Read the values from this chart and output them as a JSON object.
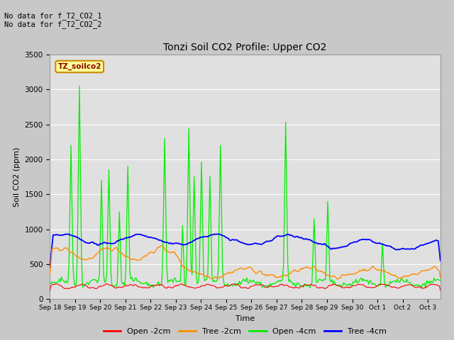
{
  "title": "Tonzi Soil CO2 Profile: Upper CO2",
  "ylabel": "Soil CO2 (ppm)",
  "xlabel": "Time",
  "no_data_texts": [
    "No data for f_T2_CO2_1",
    "No data for f_T2_CO2_2"
  ],
  "legend_label": "TZ_soilco2",
  "xlim_days": 15.5,
  "ylim": [
    0,
    3500
  ],
  "yticks": [
    0,
    500,
    1000,
    1500,
    2000,
    2500,
    3000,
    3500
  ],
  "fig_bg_color": "#c8c8c8",
  "plot_bg_color": "#e0e0e0",
  "colors": {
    "open_2cm": "#ff0000",
    "tree_2cm": "#ff8c00",
    "open_4cm": "#00ee00",
    "tree_4cm": "#0000ff"
  },
  "legend_items": [
    "Open -2cm",
    "Tree -2cm",
    "Open -4cm",
    "Tree -4cm"
  ],
  "tick_labels": [
    "Sep 18",
    "Sep 19",
    "Sep 20",
    "Sep 21",
    "Sep 22",
    "Sep 23",
    "Sep 24",
    "Sep 25",
    "Sep 26",
    "Sep 27",
    "Sep 28",
    "Sep 29",
    "Sep 30",
    "Oct 1",
    "Oct 2",
    "Oct 3"
  ]
}
